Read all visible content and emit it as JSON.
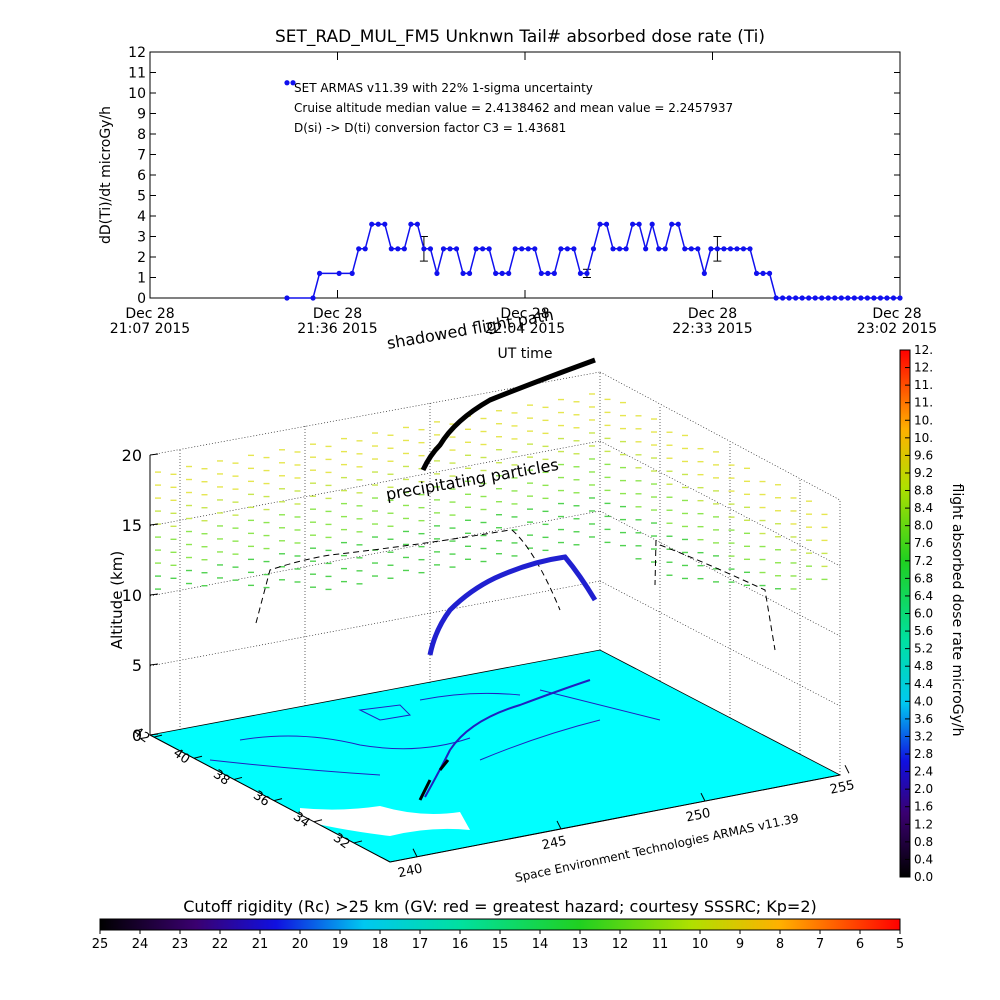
{
  "colors": {
    "dose_points": "#1010ee",
    "ground": "#00ffff",
    "axis": "#000000",
    "grid": "#000000",
    "flight_track": "#000000",
    "precipitating": [
      "#c8e650",
      "#e6e650",
      "#50d250",
      "#8ee650"
    ]
  },
  "chart_data": [
    {
      "type": "line",
      "title": "SET_RAD_MUL_FM5 Unknwn Tail#  absorbed dose rate (Ti)",
      "xlabel": "UT time",
      "ylabel": "dD(Ti)/dt microGy/h",
      "ylim": [
        0,
        12
      ],
      "yticks": [
        "0",
        "1",
        "2",
        "3",
        "4",
        "5",
        "6",
        "7",
        "8",
        "9",
        "10",
        "11",
        "12"
      ],
      "xlim_minutes": [
        0,
        115
      ],
      "xticks": [
        {
          "date": "Dec 28",
          "time": "21:07 2015"
        },
        {
          "date": "Dec 28",
          "time": "21:36 2015"
        },
        {
          "date": "Dec 28",
          "time": "22:04 2015"
        },
        {
          "date": "Dec 28",
          "time": "22:33 2015"
        },
        {
          "date": "Dec 28",
          "time": "23:02 2015"
        }
      ],
      "annotations": [
        "SET ARMAS v11.39 with 22% 1-sigma uncertainty",
        "Cruise altitude median value = 2.4138462 and mean value = 2.2457937",
        "D(si) -> D(ti) conversion factor C3 = 1.43681"
      ],
      "legend_value": 10.5,
      "series": [
        {
          "marker": "circle",
          "x_minutes": [
            21,
            25,
            26,
            29,
            31,
            32,
            33,
            34,
            35,
            36,
            37,
            38,
            39,
            40,
            41,
            42,
            43,
            44,
            45,
            46,
            47,
            48,
            49,
            50,
            51,
            52,
            53,
            54,
            55,
            56,
            57,
            58,
            59,
            60,
            61,
            62,
            63,
            64,
            65,
            66,
            67,
            68,
            69,
            70,
            71,
            72,
            73,
            74,
            75,
            76,
            77,
            78,
            79,
            80,
            81,
            82,
            83,
            84,
            85,
            86,
            87,
            88,
            89,
            90,
            91,
            92,
            93,
            94,
            95,
            96,
            97,
            98,
            99,
            100,
            101,
            102,
            103,
            104,
            105,
            106,
            107,
            108,
            109,
            110,
            111,
            112,
            113,
            114,
            115
          ],
          "values": [
            0,
            0,
            1.2,
            1.2,
            1.2,
            2.4,
            2.4,
            3.6,
            3.6,
            3.6,
            2.4,
            2.4,
            2.4,
            3.6,
            3.6,
            2.4,
            2.4,
            1.2,
            2.4,
            2.4,
            2.4,
            1.2,
            1.2,
            2.4,
            2.4,
            2.4,
            1.2,
            1.2,
            1.2,
            2.4,
            2.4,
            2.4,
            2.4,
            1.2,
            1.2,
            1.2,
            2.4,
            2.4,
            2.4,
            1.2,
            1.2,
            2.4,
            3.6,
            3.6,
            2.4,
            2.4,
            2.4,
            3.6,
            3.6,
            2.4,
            3.6,
            2.4,
            2.4,
            3.6,
            3.6,
            2.4,
            2.4,
            2.4,
            1.2,
            2.4,
            2.4,
            2.4,
            2.4,
            2.4,
            2.4,
            2.4,
            1.2,
            1.2,
            1.2,
            0,
            0,
            0,
            0,
            0,
            0,
            0,
            0,
            0,
            0,
            0,
            0,
            0,
            0,
            0,
            0,
            0,
            0,
            0,
            0
          ]
        }
      ],
      "error_bars": [
        {
          "x_minutes": 42,
          "value": 2.4,
          "err": 0.6
        },
        {
          "x_minutes": 67,
          "value": 1.2,
          "err": 0.2
        },
        {
          "x_minutes": 87,
          "value": 2.4,
          "err": 0.6
        }
      ]
    },
    {
      "type": "scatter",
      "subtype": "3d-flight-track",
      "zlabel": "Altitude (km)",
      "zticks": [
        "0",
        "5",
        "10",
        "15",
        "20"
      ],
      "lat_ticks": [
        "42",
        "40",
        "38",
        "36",
        "34",
        "32"
      ],
      "lon_ticks": [
        "240",
        "245",
        "250",
        "255"
      ],
      "annotations": [
        "shadowed flight path",
        "precipitating particles"
      ],
      "credit": "Space Environment Technologies ARMAS v11.39",
      "colorbar": {
        "label": "flight absorbed dose rate microGy/h",
        "ticks": [
          "0.0",
          "0.4",
          "0.8",
          "1.2",
          "1.6",
          "2.0",
          "2.4",
          "2.8",
          "3.2",
          "3.6",
          "4.0",
          "4.4",
          "4.8",
          "5.2",
          "5.6",
          "6.0",
          "6.4",
          "6.8",
          "7.2",
          "7.6",
          "8.0",
          "8.4",
          "8.8",
          "9.2",
          "9.6",
          "10.",
          "10.",
          "11.",
          "11.",
          "12.",
          "12."
        ]
      }
    },
    {
      "type": "heatmap",
      "subtype": "horizontal-colorbar",
      "title": "Cutoff rigidity (Rc) >25 km (GV: red = greatest hazard; courtesy SSSRC; Kp=2)",
      "ticks": [
        "25",
        "24",
        "23",
        "22",
        "21",
        "20",
        "19",
        "18",
        "17",
        "16",
        "15",
        "14",
        "13",
        "12",
        "11",
        "10",
        "9",
        "8",
        "7",
        "6",
        "5"
      ]
    }
  ]
}
